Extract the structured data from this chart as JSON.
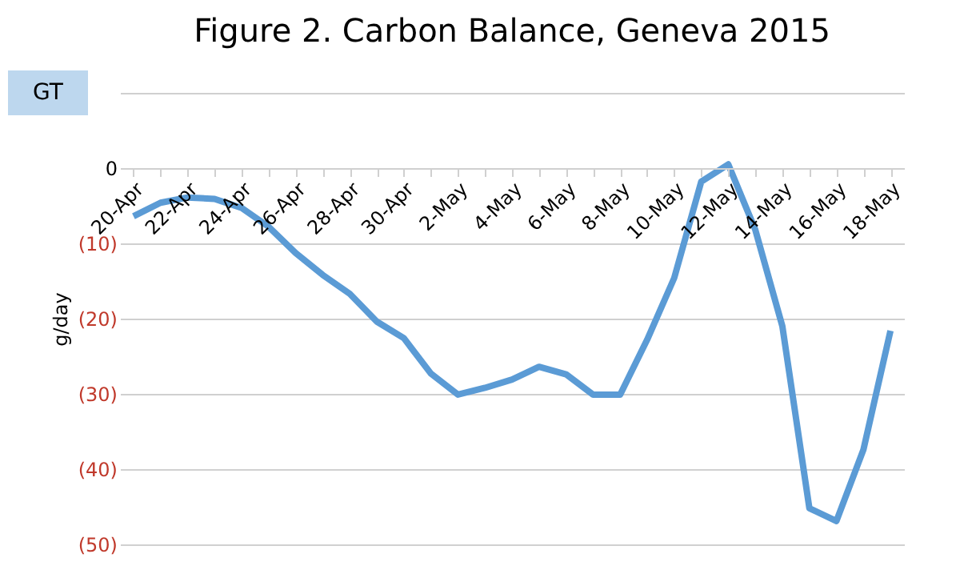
{
  "chart_data": {
    "type": "line",
    "title": "Figure 2.  Carbon Balance, Geneva 2015",
    "ylabel": "g/day",
    "annotations": [
      "GT"
    ],
    "categories": [
      "20-Apr",
      null,
      "22-Apr",
      null,
      "24-Apr",
      null,
      "26-Apr",
      null,
      "28-Apr",
      null,
      "30-Apr",
      null,
      "2-May",
      null,
      "4-May",
      null,
      "6-May",
      null,
      "8-May",
      null,
      "10-May",
      null,
      "12-May",
      null,
      "14-May",
      null,
      "16-May",
      null,
      "18-May"
    ],
    "series": [
      {
        "color": "#5b9bd5",
        "values": [
          -6.4,
          -4.6,
          -3.9,
          -4.1,
          -5.3,
          -7.8,
          -11.3,
          -14.2,
          -16.7,
          -20.4,
          -22.6,
          -27.3,
          -30.1,
          -29.2,
          -28.1,
          -26.4,
          -27.4,
          -30.1,
          -30.1,
          -22.8,
          -14.6,
          -1.8,
          0.5,
          -8.2,
          -21.0,
          -45.2,
          -46.9,
          -37.4,
          -21.6
        ]
      }
    ],
    "ylim": [
      -50,
      10
    ],
    "yticks": [
      {
        "value": -50,
        "label": "(50)"
      },
      {
        "value": -40,
        "label": "(40)"
      },
      {
        "value": -30,
        "label": "(30)"
      },
      {
        "value": -20,
        "label": "(20)"
      },
      {
        "value": -10,
        "label": "(10)"
      },
      0,
      {
        "value": 10,
        "label": null
      }
    ],
    "grid": "y",
    "legend": false,
    "marker": "none",
    "line_style": "solid"
  }
}
